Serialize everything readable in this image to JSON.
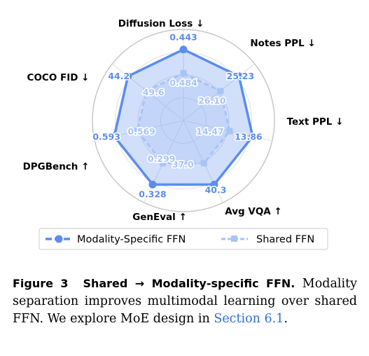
{
  "chart_data": {
    "type": "radar",
    "axes": [
      {
        "label": "Diffusion Loss ↓"
      },
      {
        "label": "Notes PPL ↓"
      },
      {
        "label": "Text PPL ↓"
      },
      {
        "label": "Avg VQA ↑"
      },
      {
        "label": "GenEval ↑"
      },
      {
        "label": "DPGBench ↑"
      },
      {
        "label": "COCO FID ↓"
      }
    ],
    "series": [
      {
        "name": "Modality-Specific FFN",
        "color": "#5b8def",
        "values": [
          0.443,
          25.23,
          13.86,
          40.3,
          0.328,
          0.593,
          44.2
        ],
        "labels": [
          "0.443",
          "25.23",
          "13.86",
          "40.3",
          "0.328",
          "0.593",
          "44.2"
        ]
      },
      {
        "name": "Shared FFN",
        "color": "#a9c3f6",
        "values": [
          0.484,
          26.1,
          14.47,
          37.0,
          0.299,
          0.569,
          49.6
        ],
        "labels": [
          "0.484",
          "26.10",
          "14.47",
          "37.0",
          "0.299",
          "0.569",
          "49.6"
        ]
      }
    ],
    "legend": "bottom"
  },
  "caption": {
    "figure_label": "Figure 3",
    "title": "Shared → Modality-specific FFN.",
    "text": " Modality separation improves multimodal learning over shared FFN. We explore MoE design in ",
    "link_text": "Section 6.1",
    "end": "."
  }
}
